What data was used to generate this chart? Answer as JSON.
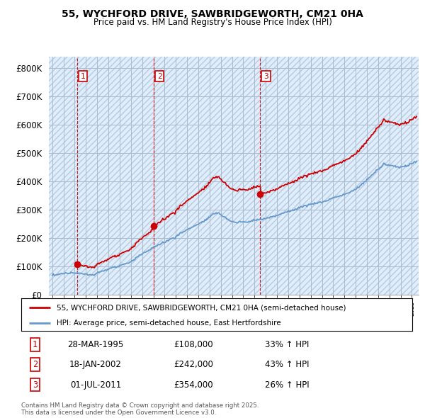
{
  "title_line1": "55, WYCHFORD DRIVE, SAWBRIDGEWORTH, CM21 0HA",
  "title_line2": "Price paid vs. HM Land Registry's House Price Index (HPI)",
  "legend_line1": "55, WYCHFORD DRIVE, SAWBRIDGEWORTH, CM21 0HA (semi-detached house)",
  "legend_line2": "HPI: Average price, semi-detached house, East Hertfordshire",
  "footer": "Contains HM Land Registry data © Crown copyright and database right 2025.\nThis data is licensed under the Open Government Licence v3.0.",
  "transactions": [
    {
      "num": 1,
      "date": "28-MAR-1995",
      "price": 108000,
      "hpi_pct": 33,
      "x_year": 1995.23
    },
    {
      "num": 2,
      "date": "18-JAN-2002",
      "price": 242000,
      "hpi_pct": 43,
      "x_year": 2002.04
    },
    {
      "num": 3,
      "date": "01-JUL-2011",
      "price": 354000,
      "hpi_pct": 26,
      "x_year": 2011.5
    }
  ],
  "red_color": "#cc0000",
  "blue_color": "#6699cc",
  "bg_color": "#ddeeff",
  "grid_color": "#aabbcc",
  "hatch_color": "#c0c8d8",
  "ylim": [
    0,
    840000
  ],
  "yticks": [
    0,
    100000,
    200000,
    300000,
    400000,
    500000,
    600000,
    700000,
    800000
  ],
  "ytick_labels": [
    "£0",
    "£100K",
    "£200K",
    "£300K",
    "£400K",
    "£500K",
    "£600K",
    "£700K",
    "£800K"
  ],
  "xlim_start": 1992.7,
  "xlim_end": 2025.6
}
